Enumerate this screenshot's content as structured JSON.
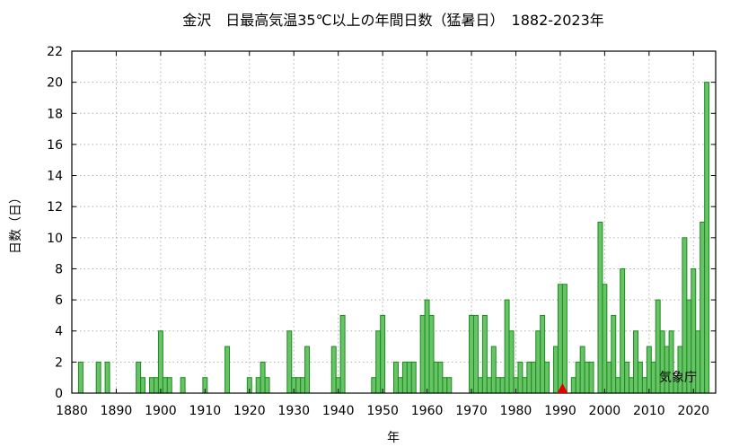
{
  "chart_data": {
    "type": "bar",
    "title": "金沢　日最高気温35℃以上の年間日数（猛暑日）　1882-2023年",
    "xlabel": "年",
    "ylabel": "日数（日）",
    "source_label": "気象庁",
    "xlim": [
      1880,
      2025
    ],
    "ylim": [
      0,
      22
    ],
    "x_ticks": [
      1880,
      1890,
      1900,
      1910,
      1920,
      1930,
      1940,
      1950,
      1960,
      1970,
      1980,
      1990,
      2000,
      2010,
      2020
    ],
    "y_ticks": [
      0,
      2,
      4,
      6,
      8,
      10,
      12,
      14,
      16,
      18,
      20,
      22
    ],
    "grid": true,
    "bar_color": "#66c466",
    "bar_edge_color": "#1e8a1e",
    "marker": {
      "x": 1990.5,
      "shape": "triangle",
      "color": "#e00000"
    },
    "x": [
      1882,
      1886,
      1888,
      1895,
      1896,
      1898,
      1899,
      1900,
      1901,
      1902,
      1905,
      1910,
      1915,
      1920,
      1922,
      1923,
      1924,
      1929,
      1930,
      1931,
      1932,
      1933,
      1939,
      1940,
      1941,
      1948,
      1949,
      1950,
      1953,
      1954,
      1955,
      1956,
      1957,
      1959,
      1960,
      1961,
      1962,
      1963,
      1964,
      1965,
      1970,
      1971,
      1972,
      1973,
      1974,
      1975,
      1976,
      1977,
      1978,
      1979,
      1980,
      1981,
      1982,
      1983,
      1984,
      1985,
      1986,
      1987,
      1989,
      1990,
      1991,
      1993,
      1994,
      1995,
      1996,
      1997,
      1999,
      2000,
      2001,
      2002,
      2003,
      2004,
      2005,
      2006,
      2007,
      2008,
      2009,
      2010,
      2011,
      2012,
      2013,
      2014,
      2015,
      2016,
      2017,
      2018,
      2019,
      2020,
      2021,
      2022,
      2023
    ],
    "values": [
      2,
      2,
      2,
      2,
      1,
      1,
      1,
      4,
      1,
      1,
      1,
      1,
      3,
      1,
      1,
      2,
      1,
      4,
      1,
      1,
      1,
      3,
      3,
      1,
      5,
      1,
      4,
      5,
      2,
      1,
      2,
      2,
      2,
      5,
      6,
      5,
      2,
      2,
      1,
      1,
      5,
      5,
      1,
      5,
      1,
      3,
      1,
      1,
      6,
      4,
      1,
      2,
      1,
      2,
      2,
      4,
      5,
      2,
      3,
      7,
      7,
      1,
      2,
      3,
      2,
      2,
      11,
      7,
      2,
      5,
      1,
      8,
      2,
      1,
      4,
      2,
      1,
      3,
      2,
      6,
      4,
      3,
      4,
      1,
      3,
      10,
      6,
      8,
      4,
      11,
      20
    ]
  }
}
